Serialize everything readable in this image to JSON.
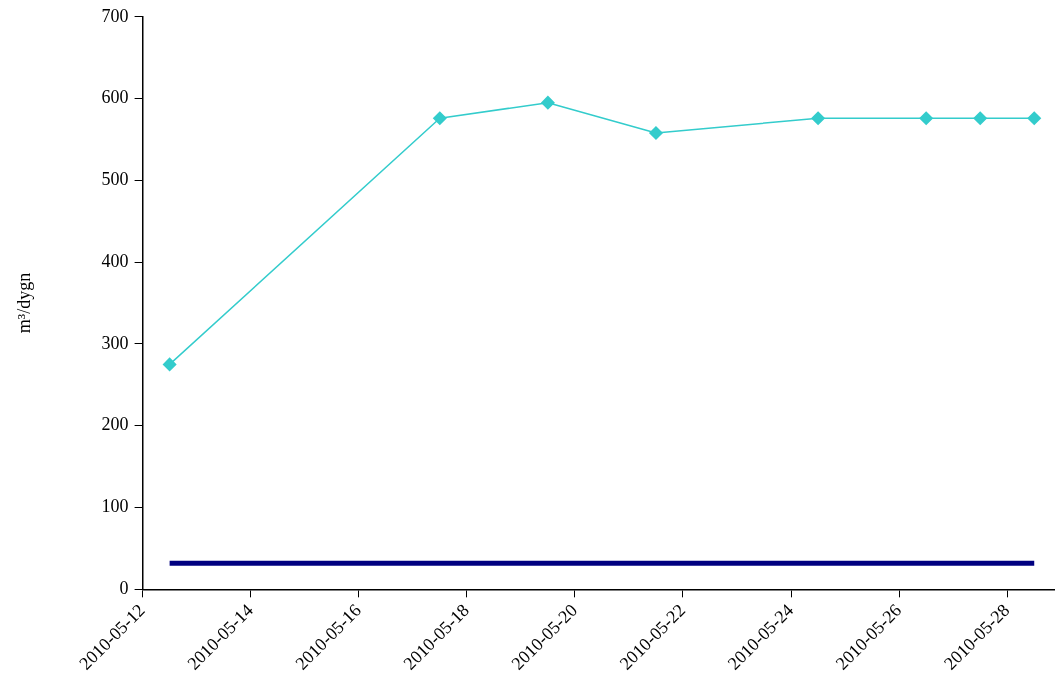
{
  "chart_data": {
    "type": "line",
    "ylabel": "m³/dygn",
    "xlim": [
      "2010-05-12",
      "2010-05-28T21:00"
    ],
    "xticks": [
      "2010-05-12",
      "2010-05-14",
      "2010-05-16",
      "2010-05-18",
      "2010-05-20",
      "2010-05-22",
      "2010-05-24",
      "2010-05-26",
      "2010-05-28"
    ],
    "ylim": [
      0,
      700
    ],
    "yticks": [
      0,
      100,
      200,
      300,
      400,
      500,
      600,
      700
    ],
    "grid": false,
    "legend": false,
    "series": [
      {
        "color": "#33cccc",
        "marker": "diamond",
        "x": [
          "2010-05-12T12:00",
          "2010-05-17T12:00",
          "2010-05-19T12:00",
          "2010-05-21T12:00",
          "2010-05-24T12:00",
          "2010-05-26T12:00",
          "2010-05-27T12:00",
          "2010-05-28T12:00"
        ],
        "values": [
          275,
          576,
          595,
          558,
          576,
          576,
          576,
          576
        ]
      },
      {
        "color": "#000080",
        "marker": "none",
        "x": [
          "2010-05-12T12:00",
          "2010-05-17T12:00",
          "2010-05-19T12:00",
          "2010-05-21T12:00",
          "2010-05-24T12:00",
          "2010-05-26T12:00",
          "2010-05-27T12:00",
          "2010-05-28T12:00"
        ],
        "values": [
          32,
          32,
          32,
          32,
          32,
          32,
          32,
          32
        ]
      }
    ]
  }
}
